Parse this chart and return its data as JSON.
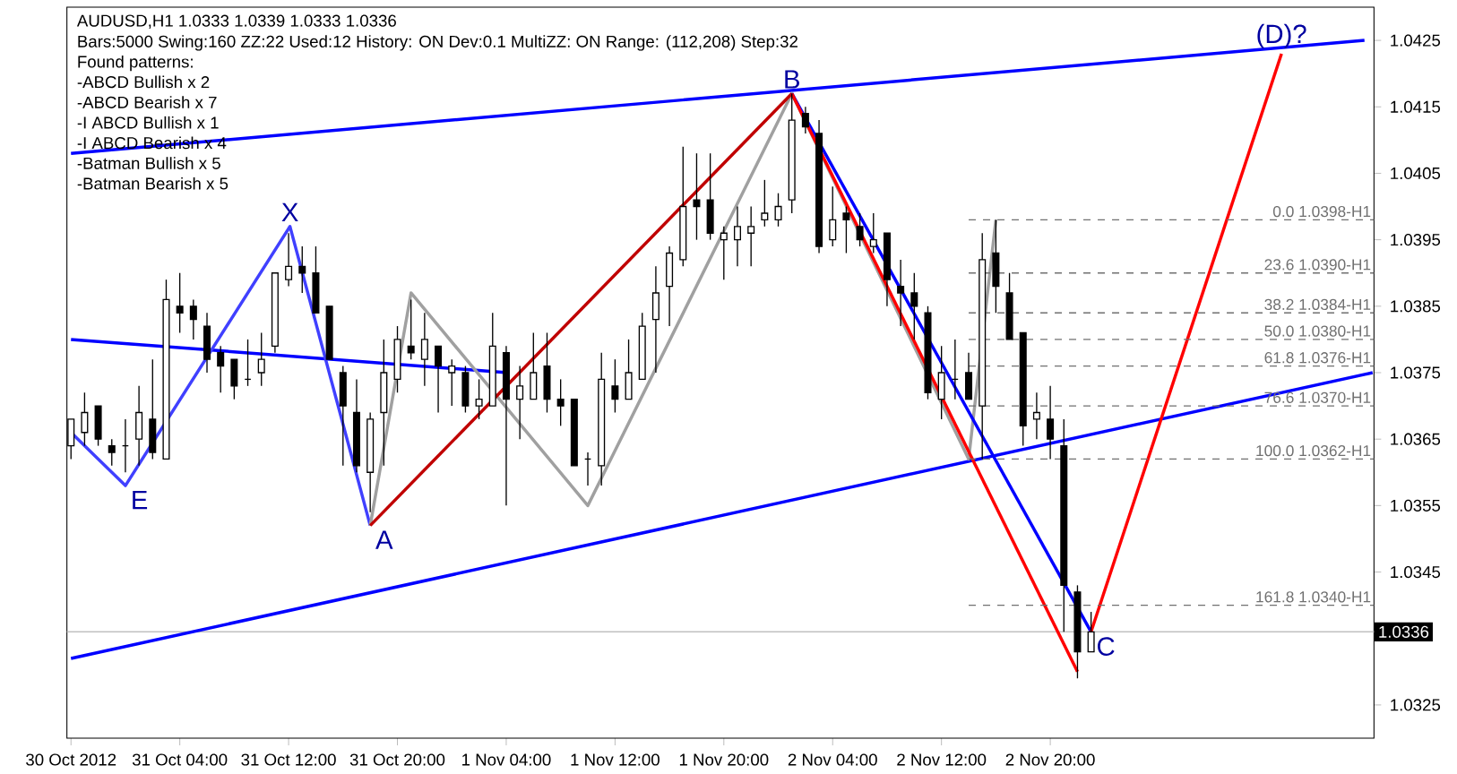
{
  "chart_data": {
    "type": "candlestick",
    "title": "AUDUSD,H1  1.0333 1.0339 1.0333 1.0336",
    "subtitle": "Bars:5000  Swing:160  ZZ:22  Used:12  History: ON Dev:0.1  MultiZZ: ON  Range: (112,208)  Step:32",
    "x": [
      "2012-10-30T20:00",
      "2012-10-30T21:00",
      "2012-10-30T22:00",
      "2012-10-30T23:00",
      "2012-10-31T00:00",
      "2012-10-31T01:00",
      "2012-10-31T02:00",
      "2012-10-31T03:00",
      "2012-10-31T04:00",
      "2012-10-31T05:00",
      "2012-10-31T06:00",
      "2012-10-31T07:00",
      "2012-10-31T08:00",
      "2012-10-31T09:00",
      "2012-10-31T10:00",
      "2012-10-31T11:00",
      "2012-10-31T12:00",
      "2012-10-31T13:00",
      "2012-10-31T14:00",
      "2012-10-31T15:00",
      "2012-10-31T16:00",
      "2012-10-31T17:00",
      "2012-10-31T18:00",
      "2012-10-31T19:00",
      "2012-10-31T20:00",
      "2012-10-31T21:00",
      "2012-10-31T22:00",
      "2012-10-31T23:00",
      "2012-11-01T00:00",
      "2012-11-01T01:00",
      "2012-11-01T02:00",
      "2012-11-01T03:00",
      "2012-11-01T04:00",
      "2012-11-01T05:00",
      "2012-11-01T06:00",
      "2012-11-01T07:00",
      "2012-11-01T08:00",
      "2012-11-01T09:00",
      "2012-11-01T10:00",
      "2012-11-01T11:00",
      "2012-11-01T12:00",
      "2012-11-01T13:00",
      "2012-11-01T14:00",
      "2012-11-01T15:00",
      "2012-11-01T16:00",
      "2012-11-01T17:00",
      "2012-11-01T18:00",
      "2012-11-01T19:00",
      "2012-11-01T20:00",
      "2012-11-01T21:00",
      "2012-11-01T22:00",
      "2012-11-01T23:00",
      "2012-11-02T00:00",
      "2012-11-02T01:00",
      "2012-11-02T02:00",
      "2012-11-02T03:00",
      "2012-11-02T04:00",
      "2012-11-02T05:00",
      "2012-11-02T06:00",
      "2012-11-02T07:00",
      "2012-11-02T08:00",
      "2012-11-02T09:00",
      "2012-11-02T10:00",
      "2012-11-02T11:00",
      "2012-11-02T12:00",
      "2012-11-02T13:00",
      "2012-11-02T14:00",
      "2012-11-02T15:00",
      "2012-11-02T16:00",
      "2012-11-02T17:00",
      "2012-11-02T18:00",
      "2012-11-02T19:00",
      "2012-11-02T20:00",
      "2012-11-02T21:00",
      "2012-11-02T22:00",
      "2012-11-02T23:00"
    ],
    "ohlc": [
      [
        1.0364,
        1.0368,
        1.0362,
        1.0368
      ],
      [
        1.0366,
        1.0372,
        1.0364,
        1.0369
      ],
      [
        1.037,
        1.037,
        1.0364,
        1.0365
      ],
      [
        1.0364,
        1.0365,
        1.0361,
        1.0363
      ],
      [
        1.0364,
        1.0368,
        1.036,
        1.0364
      ],
      [
        1.0365,
        1.0373,
        1.0361,
        1.0369
      ],
      [
        1.0368,
        1.0377,
        1.0362,
        1.0363
      ],
      [
        1.0362,
        1.0389,
        1.0362,
        1.0386
      ],
      [
        1.0385,
        1.039,
        1.0381,
        1.0384
      ],
      [
        1.0385,
        1.0386,
        1.038,
        1.0383
      ],
      [
        1.0382,
        1.0384,
        1.0375,
        1.0377
      ],
      [
        1.0378,
        1.0379,
        1.0372,
        1.0376
      ],
      [
        1.0377,
        1.0377,
        1.0371,
        1.0373
      ],
      [
        1.0374,
        1.038,
        1.0373,
        1.0374
      ],
      [
        1.0375,
        1.0381,
        1.0373,
        1.0377
      ],
      [
        1.0379,
        1.039,
        1.0378,
        1.039
      ],
      [
        1.0389,
        1.0396,
        1.0388,
        1.0391
      ],
      [
        1.0391,
        1.0394,
        1.0387,
        1.039
      ],
      [
        1.039,
        1.0394,
        1.0384,
        1.0384
      ],
      [
        1.0385,
        1.0385,
        1.0377,
        1.0377
      ],
      [
        1.0375,
        1.0376,
        1.0361,
        1.037
      ],
      [
        1.0369,
        1.0374,
        1.036,
        1.0361
      ],
      [
        1.036,
        1.0369,
        1.0354,
        1.0368
      ],
      [
        1.0369,
        1.038,
        1.0361,
        1.0375
      ],
      [
        1.0374,
        1.0382,
        1.0372,
        1.038
      ],
      [
        1.0379,
        1.0386,
        1.0377,
        1.0378
      ],
      [
        1.0377,
        1.0384,
        1.0373,
        1.038
      ],
      [
        1.0379,
        1.0379,
        1.0369,
        1.0376
      ],
      [
        1.0375,
        1.0377,
        1.037,
        1.0376
      ],
      [
        1.0375,
        1.0376,
        1.0369,
        1.037
      ],
      [
        1.037,
        1.0374,
        1.0368,
        1.0371
      ],
      [
        1.037,
        1.0384,
        1.037,
        1.0379
      ],
      [
        1.0378,
        1.0379,
        1.0355,
        1.0371
      ],
      [
        1.0371,
        1.0376,
        1.0365,
        1.0373
      ],
      [
        1.0371,
        1.0381,
        1.0371,
        1.0375
      ],
      [
        1.0376,
        1.0381,
        1.0369,
        1.0371
      ],
      [
        1.0371,
        1.0374,
        1.0367,
        1.037
      ],
      [
        1.0371,
        1.0371,
        1.0361,
        1.0361
      ],
      [
        1.0362,
        1.0363,
        1.0358,
        1.0362
      ],
      [
        1.0361,
        1.0378,
        1.0358,
        1.0374
      ],
      [
        1.0373,
        1.0377,
        1.0369,
        1.0371
      ],
      [
        1.0371,
        1.038,
        1.0371,
        1.0375
      ],
      [
        1.0374,
        1.0384,
        1.0374,
        1.0382
      ],
      [
        1.0383,
        1.0391,
        1.0375,
        1.0387
      ],
      [
        1.0388,
        1.0394,
        1.0382,
        1.0393
      ],
      [
        1.0392,
        1.0409,
        1.0391,
        1.04
      ],
      [
        1.0401,
        1.0408,
        1.0395,
        1.04
      ],
      [
        1.0401,
        1.0408,
        1.0395,
        1.0396
      ],
      [
        1.0395,
        1.0397,
        1.0389,
        1.0396
      ],
      [
        1.0395,
        1.04,
        1.0391,
        1.0397
      ],
      [
        1.0396,
        1.04,
        1.0391,
        1.0397
      ],
      [
        1.0398,
        1.0404,
        1.0397,
        1.0399
      ],
      [
        1.0398,
        1.0402,
        1.0397,
        1.04
      ],
      [
        1.0401,
        1.0417,
        1.0399,
        1.0413
      ],
      [
        1.0414,
        1.0415,
        1.0411,
        1.0412
      ],
      [
        1.0411,
        1.0413,
        1.0393,
        1.0394
      ],
      [
        1.0395,
        1.0403,
        1.0394,
        1.0398
      ],
      [
        1.0399,
        1.04,
        1.0393,
        1.0398
      ],
      [
        1.0397,
        1.0399,
        1.0394,
        1.0395
      ],
      [
        1.0394,
        1.0399,
        1.0393,
        1.0395
      ],
      [
        1.0396,
        1.0396,
        1.0385,
        1.0389
      ],
      [
        1.0388,
        1.0392,
        1.0382,
        1.0387
      ],
      [
        1.0387,
        1.039,
        1.038,
        1.0385
      ],
      [
        1.0384,
        1.0385,
        1.0371,
        1.0372
      ],
      [
        1.0371,
        1.0379,
        1.0368,
        1.0375
      ],
      [
        1.0374,
        1.038,
        1.0371,
        1.0374
      ],
      [
        1.0375,
        1.0378,
        1.0371,
        1.0371
      ],
      [
        1.037,
        1.0396,
        1.0362,
        1.0392
      ],
      [
        1.0393,
        1.0398,
        1.0384,
        1.0388
      ],
      [
        1.0387,
        1.039,
        1.038,
        1.038
      ],
      [
        1.0381,
        1.0381,
        1.0364,
        1.0367
      ],
      [
        1.0368,
        1.0372,
        1.0365,
        1.0369
      ],
      [
        1.0368,
        1.0373,
        1.0362,
        1.0365
      ],
      [
        1.0364,
        1.0368,
        1.0336,
        1.0343
      ],
      [
        1.0342,
        1.0343,
        1.0329,
        1.0333
      ],
      [
        1.0333,
        1.0339,
        1.0333,
        1.0336
      ]
    ],
    "series": [
      {
        "type": "line",
        "color": "#0000ff",
        "x": [
          "2012-10-30T20:00",
          "2012-11-03T19:06"
        ],
        "values": [
          1.0408,
          1.0425
        ]
      },
      {
        "type": "line",
        "color": "#0000ff",
        "x": [
          "2012-10-30T20:00",
          "2012-11-01T04:06"
        ],
        "values": [
          1.038,
          1.0375
        ]
      },
      {
        "type": "line",
        "color": "#0000ff",
        "x": [
          "2012-10-30T20:00",
          "2012-11-03T19:42"
        ],
        "values": [
          1.0332,
          1.0375
        ]
      },
      {
        "type": "line",
        "color": "#4040ff",
        "x": [
          "2012-10-30T20:00",
          "2012-10-31T00:00",
          "2012-10-31T12:06",
          "2012-10-31T18:00"
        ],
        "values": [
          1.0366,
          1.0358,
          1.0397,
          1.0352
        ]
      },
      {
        "type": "line",
        "color": "#a0a0a0",
        "x": [
          "2012-10-31T18:00",
          "2012-10-31T21:00",
          "2012-11-01T10:00",
          "2012-11-02T01:00",
          "2012-11-02T14:00",
          "2012-11-02T16:00"
        ],
        "values": [
          1.0352,
          1.0387,
          1.0355,
          1.0417,
          1.0362,
          1.0398
        ]
      },
      {
        "type": "line",
        "color": "#c00000",
        "x": [
          "2012-10-31T18:00",
          "2012-11-02T01:00"
        ],
        "values": [
          1.0352,
          1.0417
        ]
      },
      {
        "type": "line",
        "color": "#0000ff",
        "x": [
          "2012-11-02T01:00",
          "2012-11-02T23:00"
        ],
        "values": [
          1.0417,
          1.0336
        ]
      },
      {
        "type": "line",
        "color": "#ff0000",
        "x": [
          "2012-11-02T01:00",
          "2012-11-02T22:00"
        ],
        "values": [
          1.0417,
          1.033
        ]
      },
      {
        "type": "line",
        "color": "#ff0000",
        "x": [
          "2012-11-02T23:00",
          "2012-11-03T13:00"
        ],
        "values": [
          1.0336,
          1.0423
        ]
      },
      {
        "type": "line",
        "name": "0.0 1.0398-H1",
        "color": "#707070",
        "line_style": "dashed",
        "x": [
          "2012-11-02T14:00",
          "2012-11-03T19:48"
        ],
        "values": [
          1.0398,
          1.0398
        ]
      },
      {
        "type": "line",
        "name": "23.6 1.0390-H1",
        "color": "#707070",
        "line_style": "dashed",
        "x": [
          "2012-11-02T14:00",
          "2012-11-03T19:48"
        ],
        "values": [
          1.039,
          1.039
        ]
      },
      {
        "type": "line",
        "name": "38.2 1.0384-H1",
        "color": "#707070",
        "line_style": "dashed",
        "x": [
          "2012-11-02T14:00",
          "2012-11-03T19:48"
        ],
        "values": [
          1.0384,
          1.0384
        ]
      },
      {
        "type": "line",
        "name": "50.0 1.0380-H1",
        "color": "#707070",
        "line_style": "dashed",
        "x": [
          "2012-11-02T14:00",
          "2012-11-03T19:48"
        ],
        "values": [
          1.038,
          1.038
        ]
      },
      {
        "type": "line",
        "name": "61.8 1.0376-H1",
        "color": "#707070",
        "line_style": "dashed",
        "x": [
          "2012-11-02T14:00",
          "2012-11-03T19:48"
        ],
        "values": [
          1.0376,
          1.0376
        ]
      },
      {
        "type": "line",
        "name": "76.6 1.0370-H1",
        "color": "#707070",
        "line_style": "dashed",
        "x": [
          "2012-11-02T14:00",
          "2012-11-03T19:48"
        ],
        "values": [
          1.037,
          1.037
        ]
      },
      {
        "type": "line",
        "name": "100.0 1.0362-H1",
        "color": "#707070",
        "line_style": "dashed",
        "x": [
          "2012-11-02T14:00",
          "2012-11-03T19:48"
        ],
        "values": [
          1.0362,
          1.0362
        ]
      },
      {
        "type": "line",
        "name": "161.8 1.0340-H1",
        "color": "#707070",
        "line_style": "dashed",
        "x": [
          "2012-11-02T14:00",
          "2012-11-03T19:48"
        ],
        "values": [
          1.034,
          1.034
        ]
      }
    ],
    "ref_lines": [
      {
        "axis": "y",
        "value": 1.0336,
        "label": "1.0336",
        "color": "#c0c0c0"
      }
    ],
    "annotations": [
      "Found patterns:",
      "-ABCD Bullish x 2",
      "-ABCD Bearish x 7",
      "-I ABCD Bullish x 1",
      "-I ABCD Bearish x 4",
      "-Batman Bullish x 5",
      "-Batman Bearish x 5",
      {
        "text": "E",
        "x": "2012-10-31T00:00",
        "y": 1.0358
      },
      {
        "text": "X",
        "x": "2012-10-31T12:06",
        "y": 1.0397
      },
      {
        "text": "A",
        "x": "2012-10-31T18:00",
        "y": 1.0352
      },
      {
        "text": "B",
        "x": "2012-11-02T01:00",
        "y": 1.0417
      },
      {
        "text": "C",
        "x": "2012-11-02T23:00",
        "y": 1.0336
      },
      {
        "text": "(D)?",
        "x": "2012-11-03T13:00",
        "y": 1.0423
      }
    ],
    "xlim": [
      "2012-10-30T19:42",
      "2012-11-03T19:48"
    ],
    "ylim": [
      1.032,
      1.043
    ],
    "xticks": [
      {
        "value": "2012-10-30T20:00",
        "label": "30 Oct 2012"
      },
      {
        "value": "2012-10-31T04:00",
        "label": "31 Oct 04:00"
      },
      {
        "value": "2012-10-31T12:00",
        "label": "31 Oct 12:00"
      },
      {
        "value": "2012-10-31T20:00",
        "label": "31 Oct 20:00"
      },
      {
        "value": "2012-11-01T04:00",
        "label": "1 Nov 04:00"
      },
      {
        "value": "2012-11-01T12:00",
        "label": "1 Nov 12:00"
      },
      {
        "value": "2012-11-01T20:00",
        "label": "1 Nov 20:00"
      },
      {
        "value": "2012-11-02T04:00",
        "label": "2 Nov 04:00"
      },
      {
        "value": "2012-11-02T12:00",
        "label": "2 Nov 12:00"
      },
      {
        "value": "2012-11-02T20:00",
        "label": "2 Nov 20:00"
      }
    ],
    "yticks": [
      1.0325,
      {
        "value": 1.0335,
        "label": null
      },
      1.0345,
      1.0355,
      1.0365,
      1.0375,
      1.0385,
      1.0395,
      1.0405,
      1.0415,
      1.0425
    ],
    "grid": false
  }
}
